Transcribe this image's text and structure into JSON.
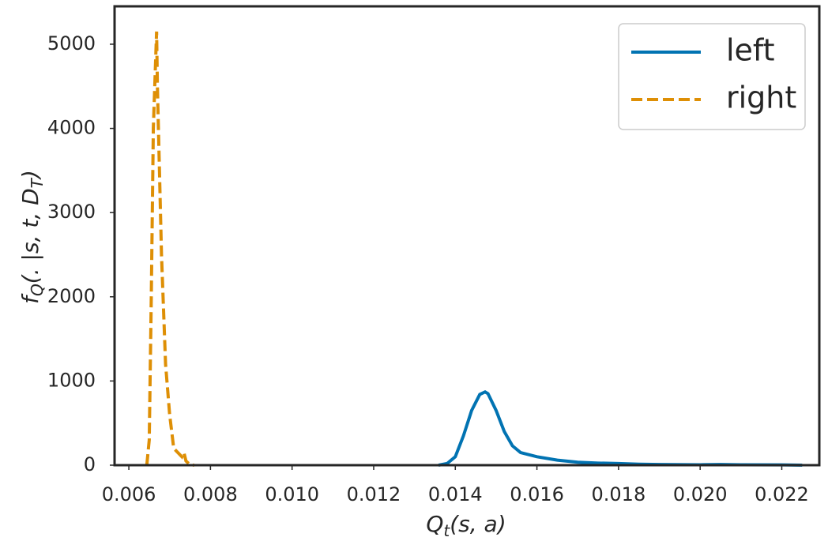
{
  "chart_data": {
    "type": "line",
    "xlabel": [
      "Q",
      "t",
      "(s, a)"
    ],
    "ylabel": [
      "f",
      "Q",
      "(. |s, t, D",
      "T",
      ")"
    ],
    "xlim": [
      0.00565,
      0.02292
    ],
    "ylim": [
      0,
      5450
    ],
    "xticks": [
      0.006,
      0.008,
      {
        "value": 0.01,
        "label": "0.010"
      },
      0.012,
      0.014,
      0.016,
      0.018,
      {
        "value": 0.02,
        "label": "0.020"
      },
      0.022
    ],
    "yticks": [
      0,
      1000,
      2000,
      3000,
      4000,
      5000
    ],
    "legend": "upper right",
    "series": [
      {
        "name": "left",
        "color": "#0173b2",
        "dashed": false,
        "x": [
          0.01359,
          0.0138,
          0.014,
          0.0142,
          0.0144,
          0.0146,
          0.01473,
          0.0148,
          0.015,
          0.0152,
          0.0154,
          0.0156,
          0.016,
          0.0165,
          0.017,
          0.0175,
          0.018,
          0.0185,
          0.019,
          0.02,
          0.0205,
          0.021,
          0.022,
          0.0225
        ],
        "values": [
          0,
          20,
          100,
          350,
          650,
          840,
          870,
          850,
          650,
          400,
          230,
          150,
          100,
          60,
          35,
          25,
          20,
          12,
          8,
          5,
          8,
          5,
          3,
          0
        ]
      },
      {
        "name": "right",
        "color": "#de8f05",
        "dashed": true,
        "x": [
          0.00644,
          0.0065,
          0.00655,
          0.0066,
          0.00668,
          0.0067,
          0.0068,
          0.0069,
          0.007,
          0.0071,
          0.0072,
          0.0073,
          0.00735,
          0.0074,
          0.0075,
          0.0076
        ],
        "values": [
          0,
          300,
          2000,
          4000,
          5150,
          4500,
          2500,
          1200,
          600,
          200,
          150,
          100,
          150,
          50,
          5,
          0
        ]
      }
    ]
  }
}
